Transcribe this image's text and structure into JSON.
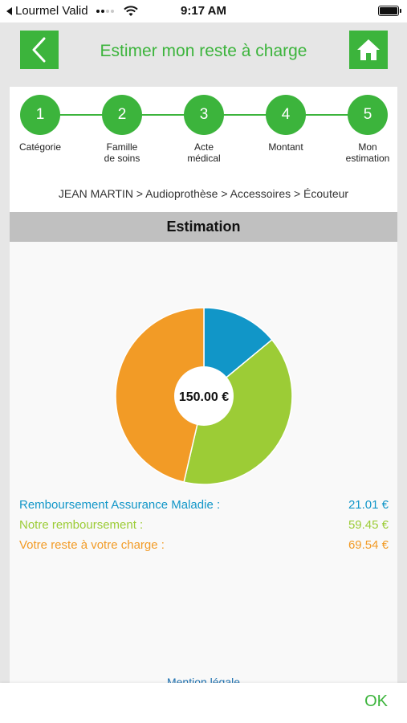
{
  "status_bar": {
    "carrier": "Lourmel Valid",
    "time": "9:17 AM",
    "icons": [
      "back-arrow-icon",
      "signal-icon",
      "wifi-icon",
      "battery-icon"
    ]
  },
  "header": {
    "title": "Estimer mon reste à charge",
    "back_icon": "chevron-left-icon",
    "home_icon": "home-icon",
    "accent_color": "#3cb43c"
  },
  "steps": [
    {
      "number": "1",
      "label": "Catégorie"
    },
    {
      "number": "2",
      "label": "Famille\nde soins"
    },
    {
      "number": "3",
      "label": "Acte\nmédical"
    },
    {
      "number": "4",
      "label": "Montant"
    },
    {
      "number": "5",
      "label": "Mon\nestimation"
    }
  ],
  "breadcrumb": "JEAN MARTIN > Audioprothèse > Accessoires > Écouteur",
  "section_title": "Estimation",
  "chart_data": {
    "type": "pie",
    "center_label": "150.00 €",
    "total": 150.0,
    "slices": [
      {
        "label": "Remboursement Assurance Maladie :",
        "value": 21.01,
        "value_text": "21.01 €",
        "color": "#1196c8"
      },
      {
        "label": "Notre remboursement :",
        "value": 59.45,
        "value_text": "59.45 €",
        "color": "#9ccc36"
      },
      {
        "label": "Votre reste à votre charge :",
        "value": 69.54,
        "value_text": "69.54 €",
        "color": "#f29b26"
      }
    ]
  },
  "mention": "Mention légale",
  "footer": {
    "ok_label": "OK"
  }
}
